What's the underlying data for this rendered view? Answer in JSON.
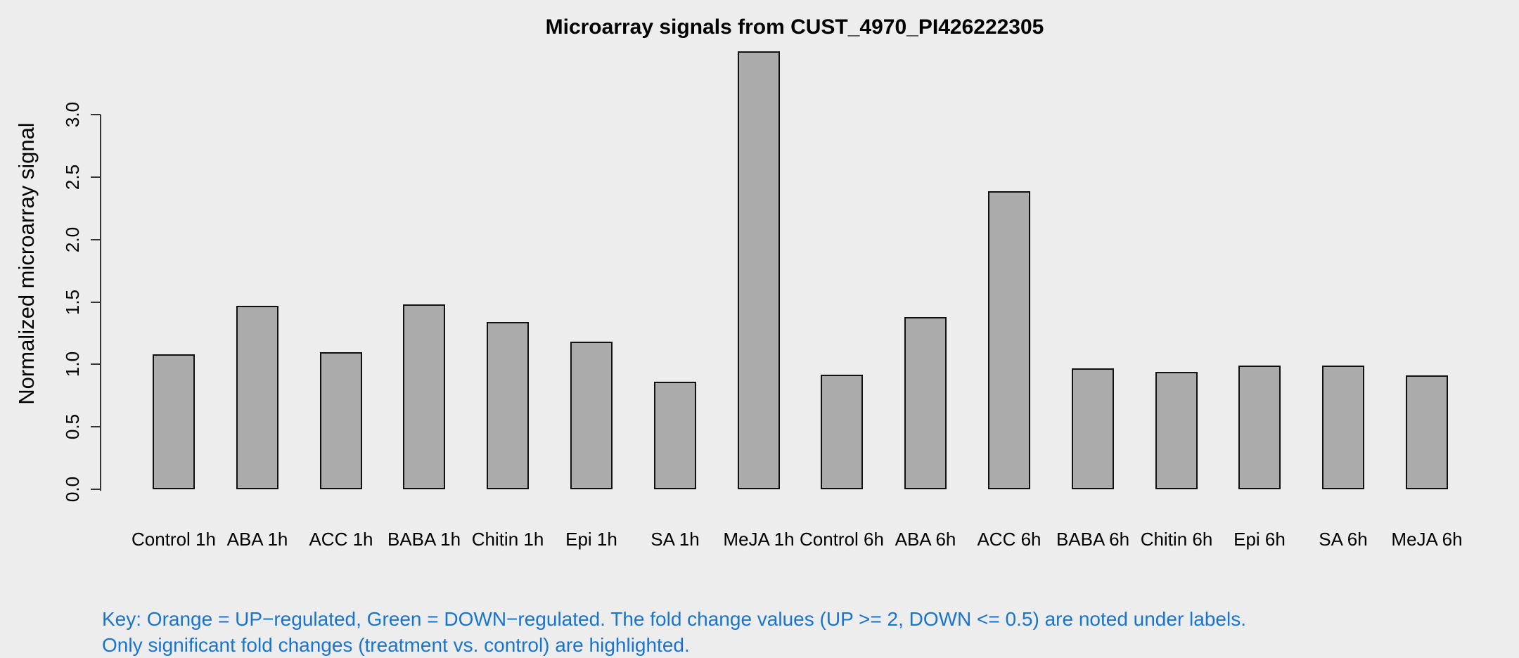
{
  "page": {
    "background": "#EDEDED"
  },
  "chart_data": {
    "type": "bar",
    "title": "Microarray signals from CUST_4970_PI426222305",
    "xlabel": "",
    "ylabel": "Normalized microarray signal",
    "categories": [
      "Control 1h",
      "ABA 1h",
      "ACC 1h",
      "BABA 1h",
      "Chitin 1h",
      "Epi 1h",
      "SA 1h",
      "MeJA 1h",
      "Control 6h",
      "ABA 6h",
      "ACC 6h",
      "BABA 6h",
      "Chitin 6h",
      "Epi 6h",
      "SA 6h",
      "MeJA 6h"
    ],
    "values": [
      1.08,
      1.47,
      1.1,
      1.48,
      1.34,
      1.18,
      0.86,
      3.51,
      0.92,
      1.38,
      2.39,
      0.97,
      0.94,
      0.99,
      0.99,
      0.91
    ],
    "yticks": [
      0.0,
      0.5,
      1.0,
      1.5,
      2.0,
      2.5,
      3.0
    ],
    "ylim": [
      0,
      3.55
    ],
    "grid": false,
    "legend": "none",
    "bar_fill": "#ABABAB",
    "bar_border": "#111111",
    "axis_color": "#333333"
  },
  "key": {
    "line1": "Key: Orange = UP−regulated, Green = DOWN−regulated. The fold change values (UP >= 2, DOWN <= 0.5) are noted under labels.",
    "line2": "Only significant fold changes (treatment vs. control) are highlighted.",
    "color": "#1874CD"
  }
}
